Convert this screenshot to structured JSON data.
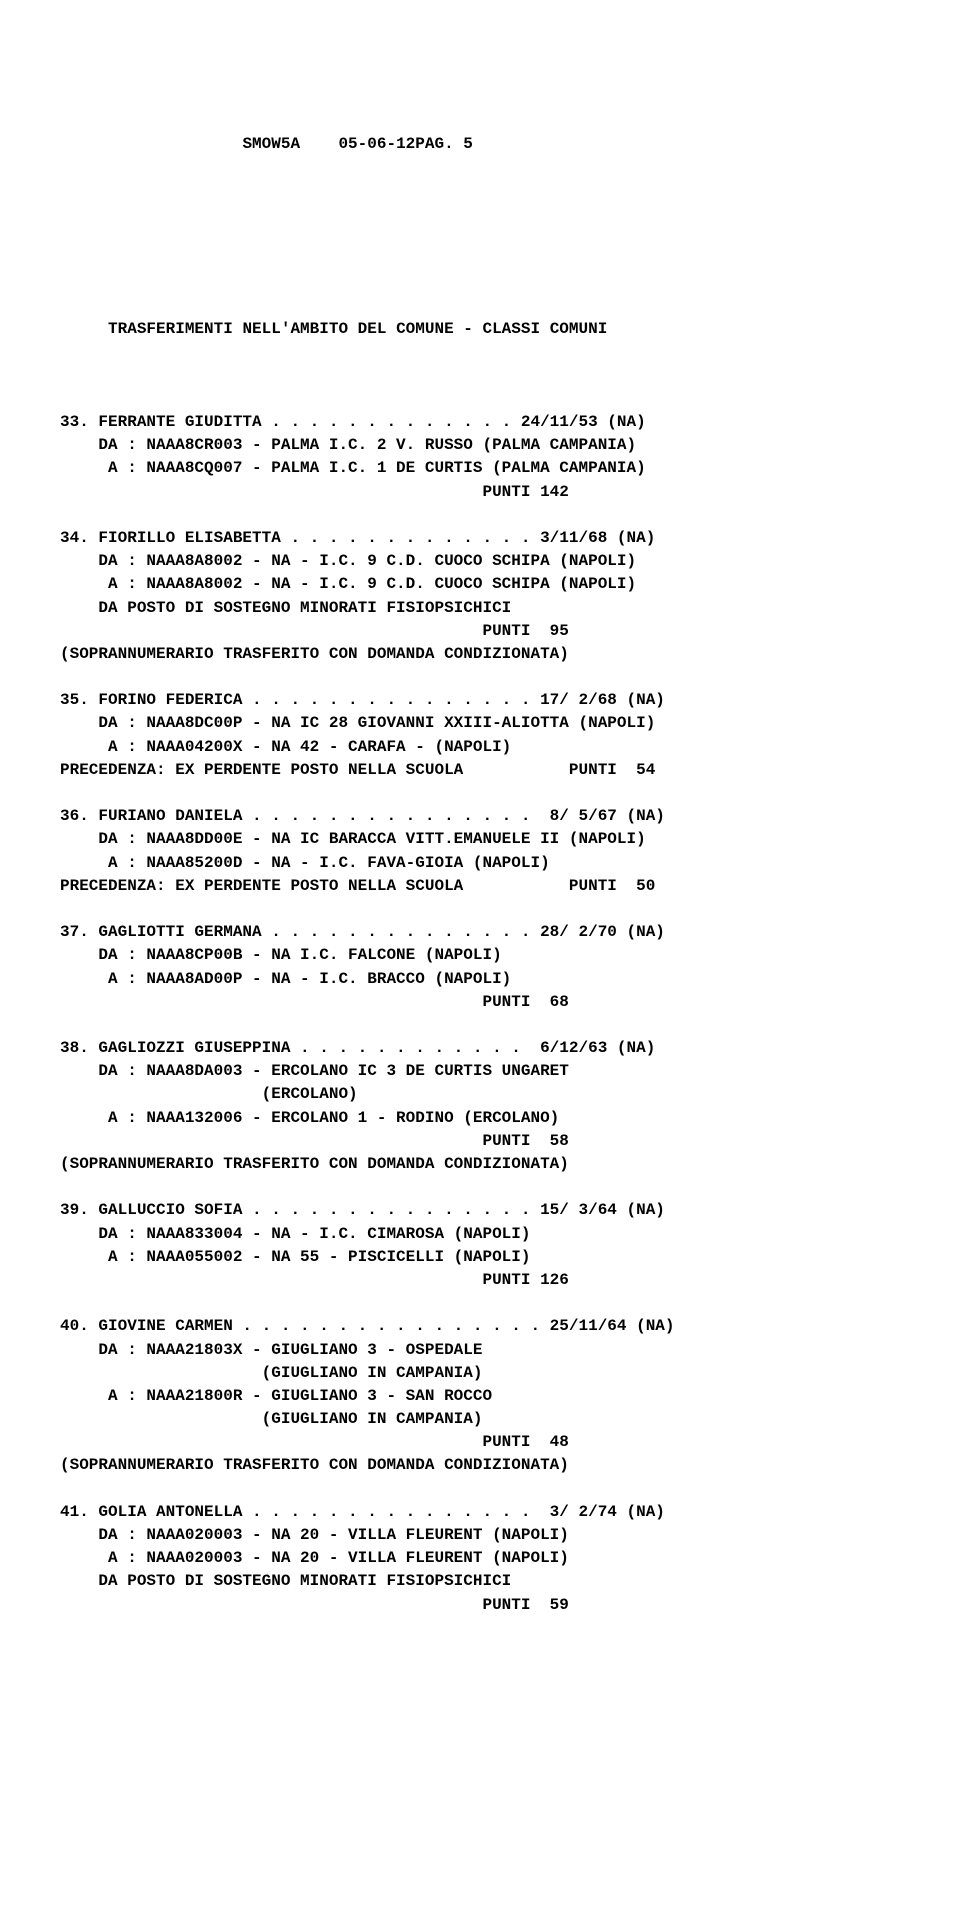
{
  "header": {
    "left": "SMOW5A",
    "right": "05-06-12PAG. 5"
  },
  "title": "TRASFERIMENTI NELL'AMBITO DEL COMUNE - CLASSI COMUNI",
  "entries": [
    {
      "num": "33.",
      "name": "FERRANTE GIUDITTA",
      "dots": " . . . . . . . . . . . . . ",
      "date": "24/11/53 (NA)",
      "da": "DA : NAAA8CR003 - PALMA I.C. 2 V. RUSSO (PALMA CAMPANIA)",
      "a": " A : NAAA8CQ007 - PALMA I.C. 1 DE CURTIS (PALMA CAMPANIA)",
      "punti": "PUNTI 142",
      "extra": []
    },
    {
      "num": "34.",
      "name": "FIORILLO ELISABETTA",
      "dots": " . . . . . . . . . . . . . ",
      "date": "3/11/68 (NA)",
      "da": "DA : NAAA8A8002 - NA - I.C. 9 C.D. CUOCO SCHIPA (NAPOLI)",
      "a": " A : NAAA8A8002 - NA - I.C. 9 C.D. CUOCO SCHIPA (NAPOLI)",
      "punti": "PUNTI  95",
      "extra": [
        "DA POSTO DI SOSTEGNO MINORATI FISIOPSICHICI"
      ],
      "footer": "(SOPRANNUMERARIO TRASFERITO CON DOMANDA CONDIZIONATA)"
    },
    {
      "num": "35.",
      "name": "FORINO FEDERICA",
      "dots": " . . . . . . . . . . . . . . . ",
      "date": "17/ 2/68 (NA)",
      "da": "DA : NAAA8DC00P - NA IC 28 GIOVANNI XXIII-ALIOTTA (NAPOLI)",
      "a": " A : NAAA04200X - NA 42 - CARAFA - (NAPOLI)",
      "prec": "PRECEDENZA: EX PERDENTE POSTO NELLA SCUOLA           PUNTI  54"
    },
    {
      "num": "36.",
      "name": "FURIANO DANIELA",
      "dots": " . . . . . . . . . . . . . . . ",
      "date": " 8/ 5/67 (NA)",
      "da": "DA : NAAA8DD00E - NA IC BARACCA VITT.EMANUELE II (NAPOLI)",
      "a": " A : NAAA85200D - NA - I.C. FAVA-GIOIA (NAPOLI)",
      "prec": "PRECEDENZA: EX PERDENTE POSTO NELLA SCUOLA           PUNTI  50"
    },
    {
      "num": "37.",
      "name": "GAGLIOTTI GERMANA",
      "dots": " . . . . . . . . . . . . . . ",
      "date": "28/ 2/70 (NA)",
      "da": "DA : NAAA8CP00B - NA I.C. FALCONE (NAPOLI)",
      "a": " A : NAAA8AD00P - NA - I.C. BRACCO (NAPOLI)",
      "punti": "PUNTI  68"
    },
    {
      "num": "38.",
      "name": "GAGLIOZZI GIUSEPPINA",
      "dots": " . . . . . . . . . . . . ",
      "date": " 6/12/63 (NA)",
      "da": "DA : NAAA8DA003 - ERCOLANO IC 3 DE CURTIS UNGARET",
      "da2": "                 (ERCOLANO)",
      "a": " A : NAAA132006 - ERCOLANO 1 - RODINO (ERCOLANO)",
      "punti": "PUNTI  58",
      "footer": "(SOPRANNUMERARIO TRASFERITO CON DOMANDA CONDIZIONATA)"
    },
    {
      "num": "39.",
      "name": "GALLUCCIO SOFIA",
      "dots": " . . . . . . . . . . . . . . . ",
      "date": "15/ 3/64 (NA)",
      "da": "DA : NAAA833004 - NA - I.C. CIMAROSA (NAPOLI)",
      "a": " A : NAAA055002 - NA 55 - PISCICELLI (NAPOLI)",
      "punti": "PUNTI 126"
    },
    {
      "num": "40.",
      "name": "GIOVINE CARMEN",
      "dots": " . . . . . . . . . . . . . . . . ",
      "date": "25/11/64 (NA)",
      "da": "DA : NAAA21803X - GIUGLIANO 3 - OSPEDALE",
      "da2": "                 (GIUGLIANO IN CAMPANIA)",
      "a": " A : NAAA21800R - GIUGLIANO 3 - SAN ROCCO",
      "a2": "                 (GIUGLIANO IN CAMPANIA)",
      "punti": "PUNTI  48",
      "footer": "(SOPRANNUMERARIO TRASFERITO CON DOMANDA CONDIZIONATA)"
    },
    {
      "num": "41.",
      "name": "GOLIA ANTONELLA",
      "dots": " . . . . . . . . . . . . . . . ",
      "date": " 3/ 2/74 (NA)",
      "da": "DA : NAAA020003 - NA 20 - VILLA FLEURENT (NAPOLI)",
      "a": " A : NAAA020003 - NA 20 - VILLA FLEURENT (NAPOLI)",
      "extra": [
        "DA POSTO DI SOSTEGNO MINORATI FISIOPSICHICI"
      ],
      "punti": "PUNTI  59"
    }
  ]
}
